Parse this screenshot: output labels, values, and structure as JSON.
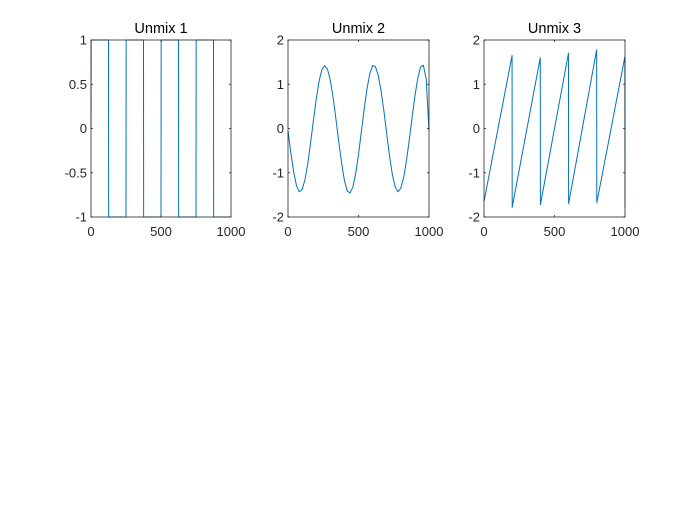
{
  "figure": {
    "background": "#ffffff",
    "axis_color": "#262626",
    "line_color": "#0072bd"
  },
  "chart_data": [
    {
      "type": "line",
      "title": "Unmix 1",
      "xlabel": "",
      "ylabel": "",
      "xlim": [
        0,
        1000
      ],
      "ylim": [
        -1,
        1
      ],
      "xticks": [
        0,
        500,
        1000
      ],
      "yticks": [
        -1,
        -0.5,
        0,
        0.5,
        1
      ],
      "xticklabels": [
        "0",
        "500",
        "1000"
      ],
      "yticklabels": [
        "-1",
        "-0.5",
        "0",
        "0.5",
        "1"
      ],
      "grid": false,
      "series": [
        {
          "x": [
            0,
            1,
            3,
            125,
            126,
            250,
            251,
            375,
            376,
            500,
            501,
            625,
            626,
            750,
            751,
            875,
            876,
            1000
          ],
          "y": [
            0,
            1,
            1,
            1,
            -1,
            -1,
            1,
            1,
            -1,
            -1,
            1,
            1,
            -1,
            -1,
            1,
            1,
            -1,
            -1
          ]
        }
      ]
    },
    {
      "type": "line",
      "title": "Unmix 2",
      "xlabel": "",
      "ylabel": "",
      "xlim": [
        0,
        1000
      ],
      "ylim": [
        -2,
        2
      ],
      "xticks": [
        0,
        500,
        1000
      ],
      "yticks": [
        -2,
        -1,
        0,
        1,
        2
      ],
      "xticklabels": [
        "0",
        "500",
        "1000"
      ],
      "yticklabels": [
        "-2",
        "-1",
        "0",
        "1",
        "2"
      ],
      "grid": false,
      "series": [
        {
          "x": [
            0,
            20,
            40,
            60,
            80,
            100,
            120,
            140,
            160,
            180,
            200,
            220,
            240,
            260,
            280,
            300,
            320,
            340,
            360,
            380,
            400,
            420,
            440,
            460,
            480,
            500,
            520,
            540,
            560,
            580,
            600,
            620,
            640,
            660,
            680,
            700,
            720,
            740,
            760,
            780,
            800,
            820,
            840,
            860,
            880,
            900,
            920,
            940,
            960,
            980,
            1000
          ],
          "y": [
            -0.05,
            -0.55,
            -0.98,
            -1.29,
            -1.43,
            -1.38,
            -1.16,
            -0.8,
            -0.33,
            0.18,
            0.66,
            1.06,
            1.33,
            1.42,
            1.34,
            1.09,
            0.7,
            0.21,
            -0.3,
            -0.78,
            -1.17,
            -1.41,
            -1.46,
            -1.32,
            -1.02,
            -0.59,
            -0.08,
            0.43,
            0.89,
            1.24,
            1.42,
            1.4,
            1.2,
            0.85,
            0.4,
            -0.12,
            -0.62,
            -1.04,
            -1.32,
            -1.43,
            -1.35,
            -1.11,
            -0.73,
            -0.26,
            0.25,
            0.73,
            1.13,
            1.39,
            1.43,
            1.12,
            -0.05
          ]
        }
      ]
    },
    {
      "type": "line",
      "title": "Unmix 3",
      "xlabel": "",
      "ylabel": "",
      "xlim": [
        0,
        1000
      ],
      "ylim": [
        -2,
        2
      ],
      "xticks": [
        0,
        500,
        1000
      ],
      "yticks": [
        -2,
        -1,
        0,
        1,
        2
      ],
      "xticklabels": [
        "0",
        "500",
        "1000"
      ],
      "yticklabels": [
        "-2",
        "-1",
        "0",
        "1",
        "2"
      ],
      "grid": false,
      "series": [
        {
          "x": [
            0,
            199,
            200,
            399,
            400,
            599,
            600,
            799,
            800,
            999,
            1000
          ],
          "y": [
            -1.65,
            1.65,
            -1.78,
            1.6,
            -1.72,
            1.7,
            -1.7,
            1.78,
            -1.68,
            1.62,
            -1.78
          ]
        }
      ]
    }
  ]
}
